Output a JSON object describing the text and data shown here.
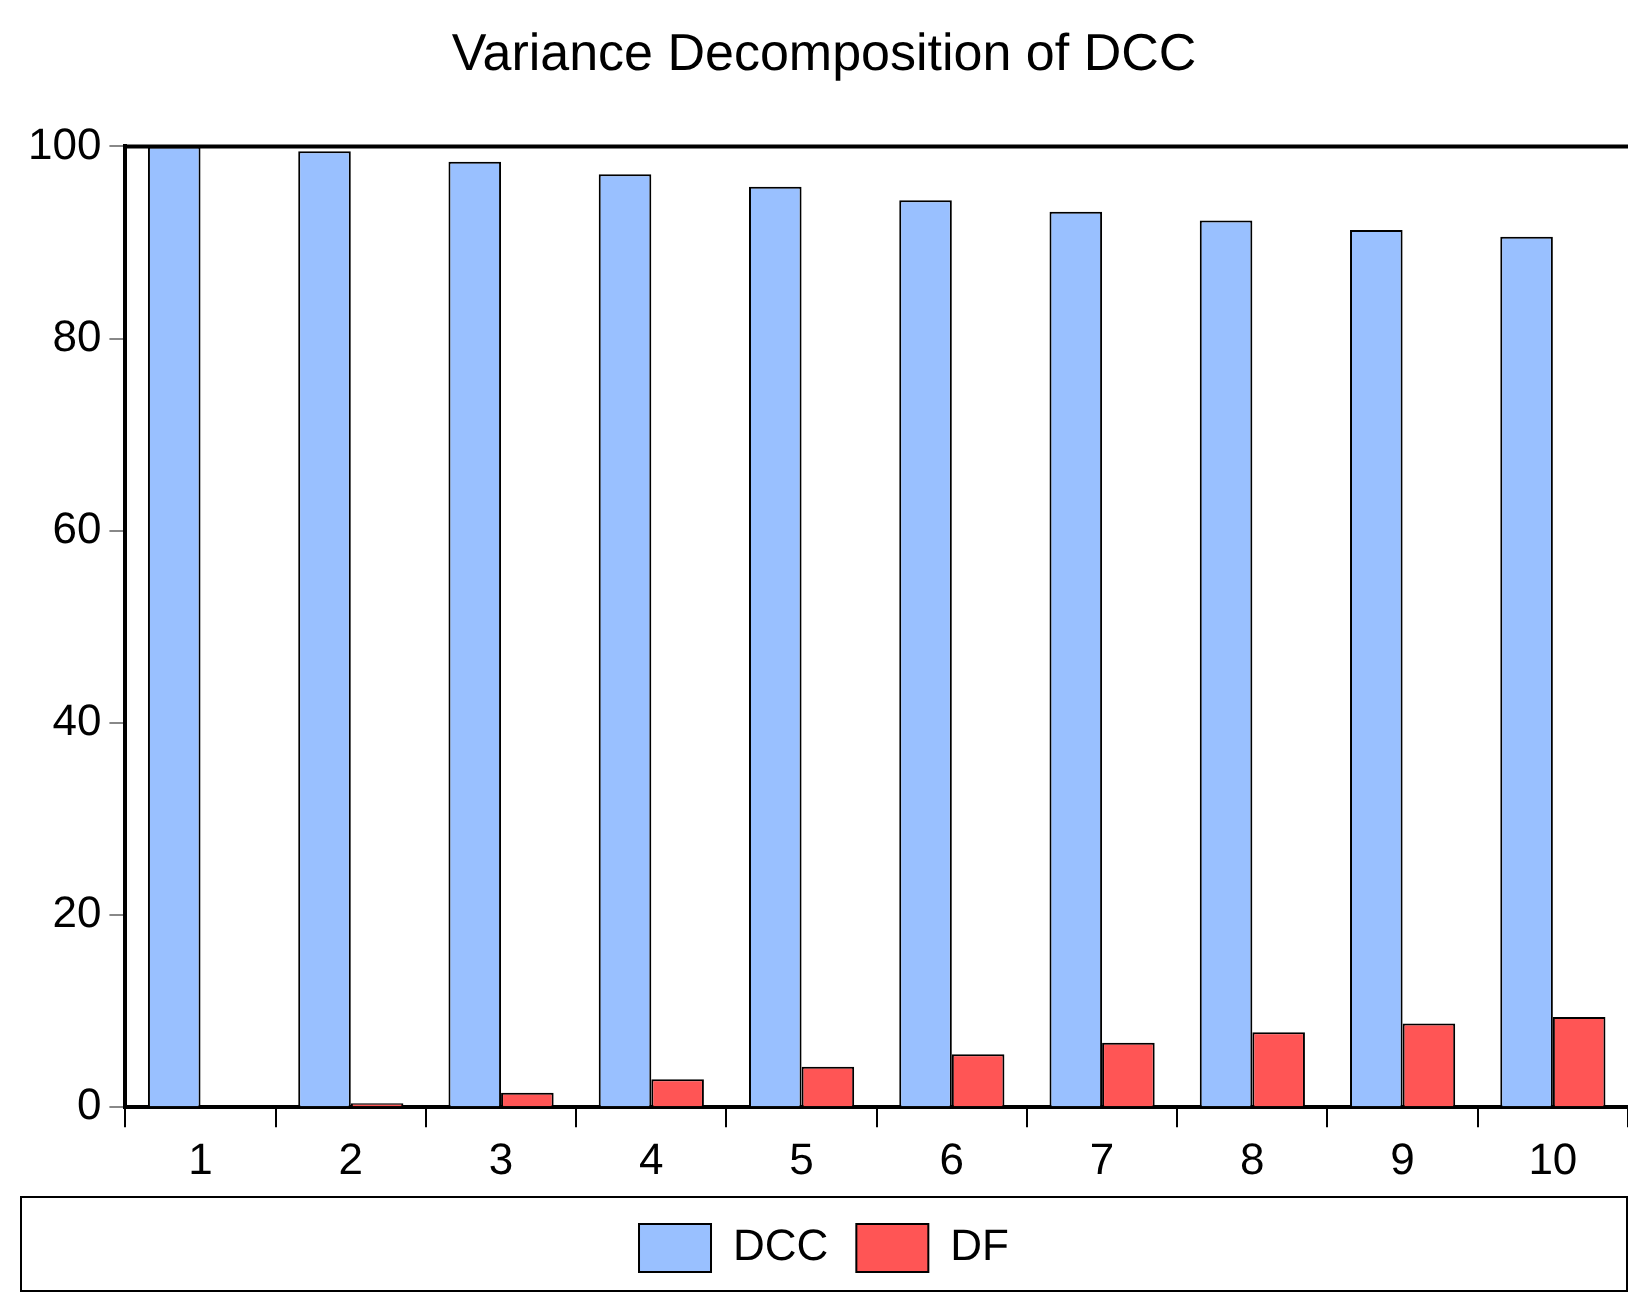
{
  "chart_data": {
    "type": "bar",
    "title": "Variance Decomposition of DCC",
    "categories": [
      "1",
      "2",
      "3",
      "4",
      "5",
      "6",
      "7",
      "8",
      "9",
      "10"
    ],
    "series": [
      {
        "name": "DCC",
        "color": "#99c0ff",
        "values": [
          100,
          99.5,
          98.4,
          97.1,
          95.8,
          94.4,
          93.2,
          92.3,
          91.3,
          90.6
        ]
      },
      {
        "name": "DF",
        "color": "#ff5555",
        "values": [
          0,
          0.4,
          1.5,
          2.9,
          4.2,
          5.5,
          6.7,
          7.8,
          8.7,
          9.4
        ]
      }
    ],
    "ylim": [
      0,
      100
    ],
    "yticks": [
      0,
      20,
      40,
      60,
      80,
      100
    ],
    "grid": false,
    "legend": "bottom"
  }
}
